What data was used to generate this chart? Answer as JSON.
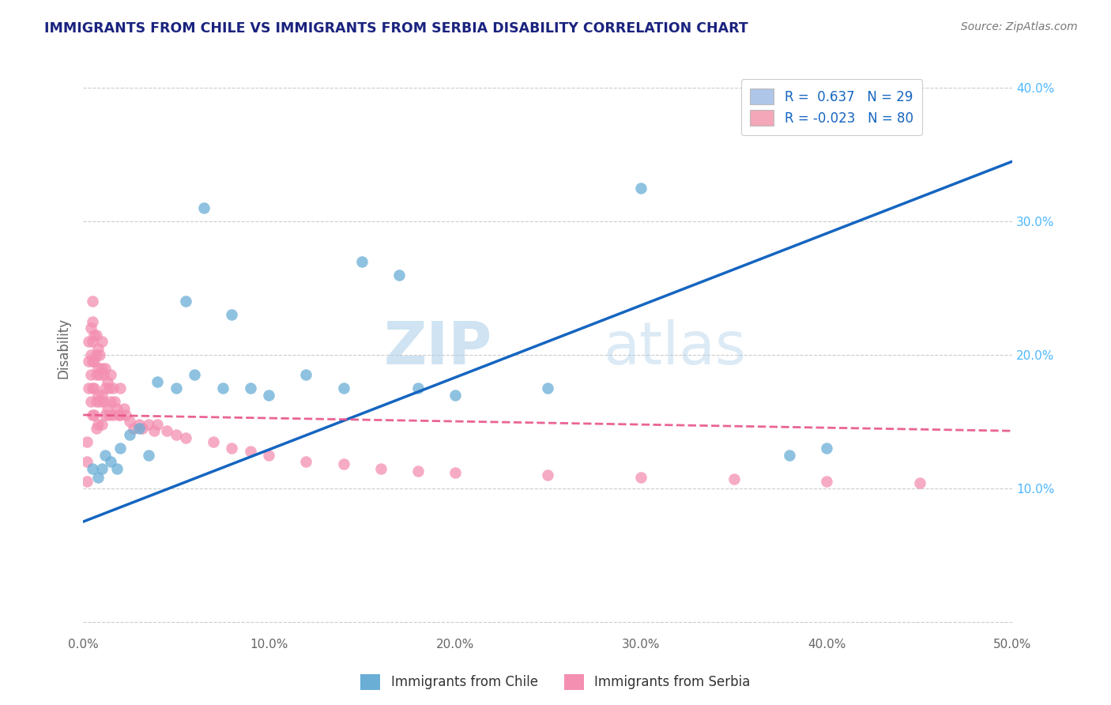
{
  "title": "IMMIGRANTS FROM CHILE VS IMMIGRANTS FROM SERBIA DISABILITY CORRELATION CHART",
  "source": "Source: ZipAtlas.com",
  "ylabel": "Disability",
  "xlim": [
    0.0,
    0.5
  ],
  "ylim": [
    -0.01,
    0.42
  ],
  "xticks": [
    0.0,
    0.1,
    0.2,
    0.3,
    0.4,
    0.5
  ],
  "yticks": [
    0.0,
    0.1,
    0.2,
    0.3,
    0.4
  ],
  "right_ytick_labels": [
    "",
    "10.0%",
    "20.0%",
    "30.0%",
    "40.0%"
  ],
  "xtick_labels": [
    "0.0%",
    "10.0%",
    "20.0%",
    "30.0%",
    "40.0%",
    "50.0%"
  ],
  "watermark_zip": "ZIP",
  "watermark_atlas": "atlas",
  "legend_entries": [
    {
      "label": "R =  0.637   N = 29",
      "color": "#aec6e8"
    },
    {
      "label": "R = -0.023   N = 80",
      "color": "#f4a7b9"
    }
  ],
  "chile_color": "#6aaed6",
  "serbia_color": "#f48fb1",
  "trend_chile_color": "#1565c0",
  "trend_serbia_color": "#e8538a",
  "grid_color": "#cccccc",
  "title_color": "#1a237e",
  "axis_color": "#666666",
  "legend_text_color": "#1565c0",
  "right_axis_color": "#4db8ff",
  "chile_scatter_x": [
    0.005,
    0.008,
    0.01,
    0.012,
    0.015,
    0.018,
    0.02,
    0.025,
    0.03,
    0.035,
    0.04,
    0.05,
    0.055,
    0.06,
    0.065,
    0.075,
    0.08,
    0.09,
    0.1,
    0.12,
    0.14,
    0.15,
    0.17,
    0.18,
    0.2,
    0.25,
    0.3,
    0.38,
    0.4
  ],
  "chile_scatter_y": [
    0.115,
    0.108,
    0.115,
    0.125,
    0.12,
    0.115,
    0.13,
    0.14,
    0.145,
    0.125,
    0.18,
    0.175,
    0.24,
    0.185,
    0.31,
    0.175,
    0.23,
    0.175,
    0.17,
    0.185,
    0.175,
    0.27,
    0.26,
    0.175,
    0.17,
    0.175,
    0.325,
    0.125,
    0.13
  ],
  "serbia_scatter_x": [
    0.002,
    0.002,
    0.002,
    0.003,
    0.003,
    0.003,
    0.004,
    0.004,
    0.004,
    0.004,
    0.005,
    0.005,
    0.005,
    0.005,
    0.005,
    0.005,
    0.006,
    0.006,
    0.006,
    0.006,
    0.007,
    0.007,
    0.007,
    0.007,
    0.007,
    0.008,
    0.008,
    0.008,
    0.008,
    0.009,
    0.009,
    0.009,
    0.01,
    0.01,
    0.01,
    0.01,
    0.011,
    0.011,
    0.012,
    0.012,
    0.012,
    0.013,
    0.013,
    0.014,
    0.014,
    0.015,
    0.015,
    0.016,
    0.016,
    0.017,
    0.018,
    0.019,
    0.02,
    0.02,
    0.022,
    0.023,
    0.025,
    0.027,
    0.03,
    0.032,
    0.035,
    0.038,
    0.04,
    0.045,
    0.05,
    0.055,
    0.07,
    0.08,
    0.09,
    0.1,
    0.12,
    0.14,
    0.16,
    0.18,
    0.2,
    0.25,
    0.3,
    0.35,
    0.4,
    0.45
  ],
  "serbia_scatter_y": [
    0.135,
    0.12,
    0.105,
    0.21,
    0.195,
    0.175,
    0.22,
    0.2,
    0.185,
    0.165,
    0.24,
    0.225,
    0.21,
    0.195,
    0.175,
    0.155,
    0.215,
    0.195,
    0.175,
    0.155,
    0.215,
    0.2,
    0.185,
    0.165,
    0.145,
    0.205,
    0.19,
    0.17,
    0.148,
    0.2,
    0.185,
    0.165,
    0.21,
    0.19,
    0.17,
    0.148,
    0.185,
    0.165,
    0.19,
    0.175,
    0.155,
    0.18,
    0.16,
    0.175,
    0.155,
    0.185,
    0.165,
    0.175,
    0.155,
    0.165,
    0.16,
    0.155,
    0.175,
    0.155,
    0.16,
    0.155,
    0.15,
    0.145,
    0.148,
    0.145,
    0.148,
    0.143,
    0.148,
    0.143,
    0.14,
    0.138,
    0.135,
    0.13,
    0.128,
    0.125,
    0.12,
    0.118,
    0.115,
    0.113,
    0.112,
    0.11,
    0.108,
    0.107,
    0.105,
    0.104
  ],
  "chile_trend_x": [
    0.0,
    0.5
  ],
  "chile_trend_y": [
    0.075,
    0.345
  ],
  "serbia_trend_x": [
    0.0,
    0.5
  ],
  "serbia_trend_y": [
    0.155,
    0.143
  ]
}
